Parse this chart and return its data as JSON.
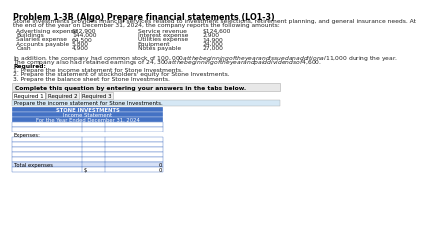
{
  "title": "Problem 1-3B (Algo) Prepare financial statements (LO1-3)",
  "body_line1": "Stone Investments provides financial services related to investment selections, retirement planning, and general insurance needs. At",
  "body_line2": "the end of the year on December 31, 2024, the company reports the following amounts:",
  "left_items": [
    [
      "Advertising expense",
      "$32,900"
    ],
    [
      "Buildings",
      "144,000"
    ],
    [
      "Salaries expense",
      "64,500"
    ],
    [
      "Accounts payable",
      "5,800"
    ],
    [
      "Cash",
      "4,900"
    ]
  ],
  "right_items": [
    [
      "Service revenue",
      "$124,600"
    ],
    [
      "Interest expense",
      "2,900"
    ],
    [
      "Utilities expense",
      "14,900"
    ],
    [
      "Equipment",
      "24,000"
    ],
    [
      "Notes payable",
      "27,000"
    ]
  ],
  "addition_line1": "In addition, the company had common stock of $100,000 at the beginning of the year and issued an additional $11,000 during the year.",
  "addition_line2": "The company also had retained earnings of $24,300 at the beginning of the year and paid dividends of $4,600.",
  "required_title": "Required:",
  "required_items": [
    "1. Prepare the income statement for Stone Investments.",
    "2. Prepare the statement of stockholders' equity for Stone Investments.",
    "3. Prepare the balance sheet for Stone Investments."
  ],
  "complete_box_text": "Complete this question by entering your answers in the tabs below.",
  "tabs": [
    "Required 1",
    "Required 2",
    "Required 3"
  ],
  "instruction_text": "Prepare the income statement for Stone Investments.",
  "table_header_lines": [
    "STONE INVESTMENTS",
    "Income Statement",
    "For the Year Ended December 31, 2024"
  ],
  "table_header_bg": "#4472C4",
  "table_header_bg2": "#5B8BD0",
  "table_row_shaded": "#D6E0F5",
  "table_border_color": "#4472C4",
  "table_label_expenses": "Expenses:",
  "table_label_total": "Total expenses",
  "total_value": "0",
  "dollar_sign": "$",
  "net_value": "0",
  "gray_box_bg": "#E8E8E8",
  "tab_active_bg": "#FFFFFF",
  "tab_inactive_bg": "#F0F0F0",
  "instruction_bg": "#D6E8F5",
  "num_revenue_rows": 2,
  "num_expense_rows": 5,
  "fs_title": 5.8,
  "fs_body": 4.3,
  "fs_tab": 4.0,
  "fs_table": 3.8
}
